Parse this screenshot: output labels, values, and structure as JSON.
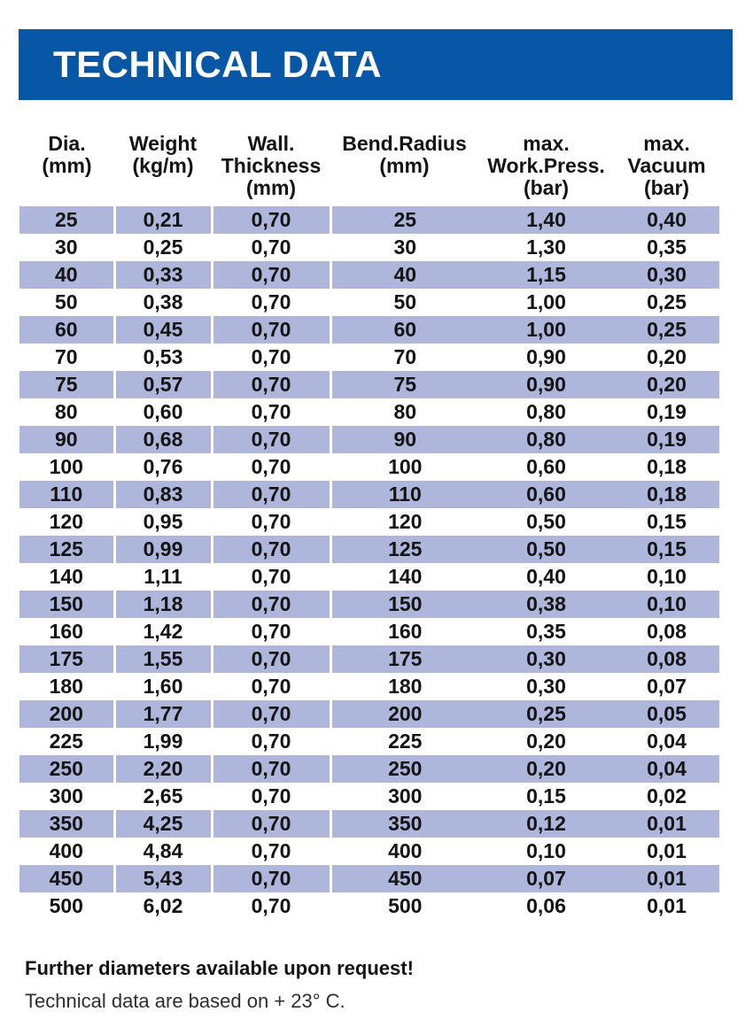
{
  "banner": {
    "title": "TECHNICAL DATA",
    "bg_color": "#0857A6",
    "text_color": "#ffffff"
  },
  "table": {
    "stripe_color": "#AFB6DC",
    "columns": [
      {
        "key": "dia",
        "label": "Dia.\n(mm)"
      },
      {
        "key": "weight",
        "label": "Weight\n(kg/m)"
      },
      {
        "key": "wall-thickness",
        "label": "Wall.\nThickness\n(mm)"
      },
      {
        "key": "bend-radius",
        "label": "Bend.Radius\n(mm)"
      },
      {
        "key": "max-work-press",
        "label": "max.\nWork.Press.\n(bar)"
      },
      {
        "key": "max-vacuum",
        "label": "max.\nVacuum\n(bar)"
      }
    ],
    "rows": [
      [
        "25",
        "0,21",
        "0,70",
        "25",
        "1,40",
        "0,40"
      ],
      [
        "30",
        "0,25",
        "0,70",
        "30",
        "1,30",
        "0,35"
      ],
      [
        "40",
        "0,33",
        "0,70",
        "40",
        "1,15",
        "0,30"
      ],
      [
        "50",
        "0,38",
        "0,70",
        "50",
        "1,00",
        "0,25"
      ],
      [
        "60",
        "0,45",
        "0,70",
        "60",
        "1,00",
        "0,25"
      ],
      [
        "70",
        "0,53",
        "0,70",
        "70",
        "0,90",
        "0,20"
      ],
      [
        "75",
        "0,57",
        "0,70",
        "75",
        "0,90",
        "0,20"
      ],
      [
        "80",
        "0,60",
        "0,70",
        "80",
        "0,80",
        "0,19"
      ],
      [
        "90",
        "0,68",
        "0,70",
        "90",
        "0,80",
        "0,19"
      ],
      [
        "100",
        "0,76",
        "0,70",
        "100",
        "0,60",
        "0,18"
      ],
      [
        "110",
        "0,83",
        "0,70",
        "110",
        "0,60",
        "0,18"
      ],
      [
        "120",
        "0,95",
        "0,70",
        "120",
        "0,50",
        "0,15"
      ],
      [
        "125",
        "0,99",
        "0,70",
        "125",
        "0,50",
        "0,15"
      ],
      [
        "140",
        "1,11",
        "0,70",
        "140",
        "0,40",
        "0,10"
      ],
      [
        "150",
        "1,18",
        "0,70",
        "150",
        "0,38",
        "0,10"
      ],
      [
        "160",
        "1,42",
        "0,70",
        "160",
        "0,35",
        "0,08"
      ],
      [
        "175",
        "1,55",
        "0,70",
        "175",
        "0,30",
        "0,08"
      ],
      [
        "180",
        "1,60",
        "0,70",
        "180",
        "0,30",
        "0,07"
      ],
      [
        "200",
        "1,77",
        "0,70",
        "200",
        "0,25",
        "0,05"
      ],
      [
        "225",
        "1,99",
        "0,70",
        "225",
        "0,20",
        "0,04"
      ],
      [
        "250",
        "2,20",
        "0,70",
        "250",
        "0,20",
        "0,04"
      ],
      [
        "300",
        "2,65",
        "0,70",
        "300",
        "0,15",
        "0,02"
      ],
      [
        "350",
        "4,25",
        "0,70",
        "350",
        "0,12",
        "0,01"
      ],
      [
        "400",
        "4,84",
        "0,70",
        "400",
        "0,10",
        "0,01"
      ],
      [
        "450",
        "5,43",
        "0,70",
        "450",
        "0,07",
        "0,01"
      ],
      [
        "500",
        "6,02",
        "0,70",
        "500",
        "0,06",
        "0,01"
      ]
    ]
  },
  "footer": {
    "line1": "Further diameters available upon request!",
    "line2": "Technical data are based on + 23° C."
  }
}
